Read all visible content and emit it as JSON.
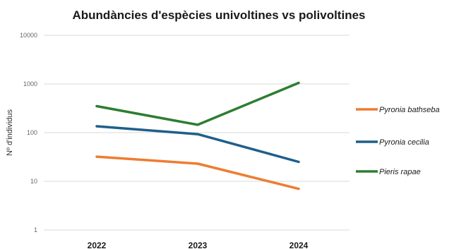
{
  "chart_data": {
    "type": "line",
    "title": "Abundàncies d'espècies univoltines vs polivoltines",
    "ylabel": "Nº d'individus",
    "xlabel": "",
    "y_scale": "log",
    "ylim": [
      1,
      10000
    ],
    "yticks": [
      "1",
      "10",
      "100",
      "1000",
      "10000"
    ],
    "categories": [
      "2022",
      "2023",
      "2024"
    ],
    "grid": true,
    "legend_position": "right",
    "series": [
      {
        "name": "Pyronia bathseba",
        "color": "#ed7d31",
        "values": [
          32,
          23,
          7
        ]
      },
      {
        "name": "Pyronia cecilia",
        "color": "#1f5f8b",
        "values": [
          135,
          93,
          25
        ]
      },
      {
        "name": "Pieris rapae",
        "color": "#2e7d32",
        "values": [
          350,
          145,
          1050
        ]
      }
    ]
  }
}
